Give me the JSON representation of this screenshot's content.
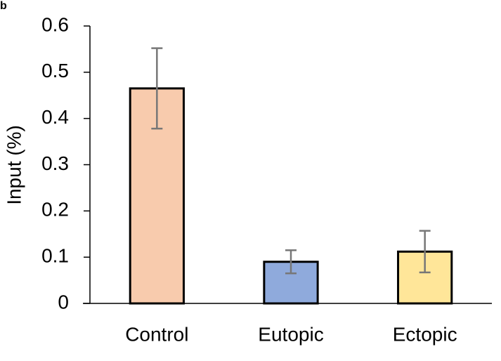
{
  "panel_label": "b",
  "chart_data": {
    "type": "bar",
    "ylabel": "Input (%)",
    "categories": [
      "Control",
      "Eutopic",
      "Ectopic"
    ],
    "values": [
      0.465,
      0.09,
      0.112
    ],
    "errors": [
      0.087,
      0.025,
      0.045
    ],
    "colors": [
      "#f8cbad",
      "#8faadc",
      "#ffe699"
    ],
    "ylim": [
      0,
      0.6
    ],
    "yticks": [
      0,
      0.1,
      0.2,
      0.3,
      0.4,
      0.5,
      0.6
    ],
    "grid": false
  }
}
